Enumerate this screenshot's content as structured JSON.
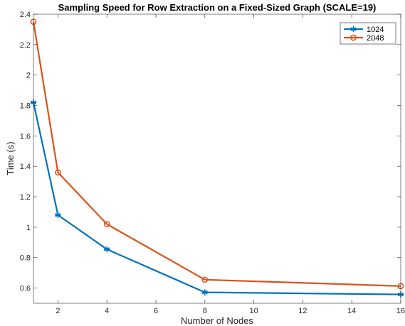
{
  "chart_data": {
    "type": "line",
    "title": "Sampling Speed for Row Extraction on a Fixed-Sized Graph (SCALE=19)",
    "xlabel": "Number of Nodes",
    "ylabel": "Time (s)",
    "xlim": [
      1,
      16
    ],
    "ylim": [
      0.5,
      2.4
    ],
    "xticks": [
      2,
      4,
      6,
      8,
      10,
      12,
      14,
      16
    ],
    "yticks": [
      0.6,
      0.8,
      1,
      1.2,
      1.4,
      1.6,
      1.8,
      2,
      2.2,
      2.4
    ],
    "x": [
      1,
      2,
      4,
      8,
      16
    ],
    "series": [
      {
        "name": "1024",
        "values": [
          1.82,
          1.08,
          0.855,
          0.572,
          0.558
        ],
        "color": "#0072BD",
        "marker": "asterisk"
      },
      {
        "name": "2048",
        "values": [
          2.35,
          1.36,
          1.02,
          0.655,
          0.613
        ],
        "color": "#D95319",
        "marker": "circle"
      }
    ],
    "legend_position": "top-right",
    "grid": false,
    "box": true
  }
}
